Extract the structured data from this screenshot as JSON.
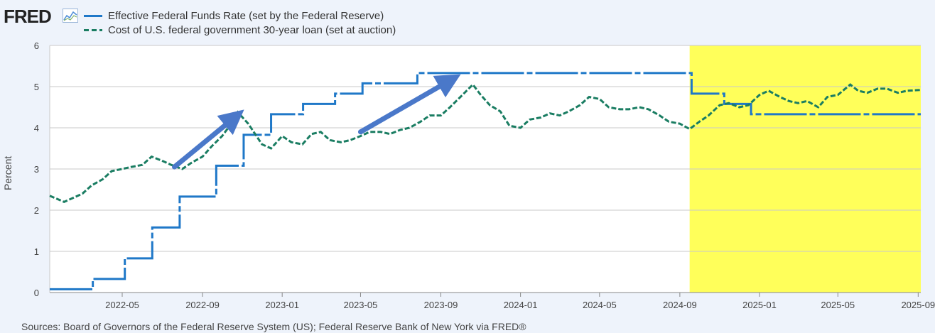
{
  "header": {
    "logo_text": "FRED",
    "logo_icon": "line-chart-icon"
  },
  "footer": {
    "sources": "Sources: Board of Governors of the Federal Reserve System (US); Federal Reserve Bank of New York via FRED®"
  },
  "chart_data": {
    "type": "line",
    "title": "",
    "xlabel": "",
    "ylabel": "Percent",
    "ylim": [
      0,
      6
    ],
    "yticks": [
      0,
      1,
      2,
      3,
      4,
      5,
      6
    ],
    "xlim": [
      "2022-01-10",
      "2025-09-05"
    ],
    "xticks": [
      "2022-05",
      "2022-09",
      "2023-01",
      "2023-05",
      "2023-09",
      "2024-01",
      "2024-05",
      "2024-09",
      "2025-01",
      "2025-05",
      "2025-09"
    ],
    "grid": "horizontal",
    "legend_position": "top-left",
    "series": [
      {
        "name": "Effective Federal Funds Rate (set by the Federal Reserve)",
        "color": "#1f78c8",
        "style": "solid-step",
        "x": [
          "2022-01-10",
          "2022-03-17",
          "2022-05-05",
          "2022-06-16",
          "2022-07-28",
          "2022-09-22",
          "2022-11-03",
          "2022-12-15",
          "2023-02-02",
          "2023-03-23",
          "2023-05-04",
          "2023-07-27",
          "2024-09-19",
          "2024-11-08",
          "2024-12-19",
          "2025-09-05"
        ],
        "y": [
          0.08,
          0.33,
          0.83,
          1.58,
          2.33,
          3.08,
          3.83,
          4.33,
          4.58,
          4.83,
          5.08,
          5.33,
          4.83,
          4.58,
          4.33,
          4.33
        ]
      },
      {
        "name": "Cost of U.S. federal government 30-year loan (set at auction)",
        "color": "#1a7d62",
        "style": "dashed",
        "x": [
          "2022-01-10",
          "2022-02-01",
          "2022-02-15",
          "2022-03-01",
          "2022-03-15",
          "2022-04-01",
          "2022-04-15",
          "2022-05-01",
          "2022-05-15",
          "2022-06-01",
          "2022-06-15",
          "2022-07-01",
          "2022-07-15",
          "2022-08-01",
          "2022-08-15",
          "2022-09-01",
          "2022-09-15",
          "2022-10-01",
          "2022-10-15",
          "2022-10-25",
          "2022-11-10",
          "2022-12-01",
          "2022-12-15",
          "2023-01-01",
          "2023-01-15",
          "2023-02-01",
          "2023-02-15",
          "2023-03-01",
          "2023-03-15",
          "2023-04-01",
          "2023-04-15",
          "2023-05-01",
          "2023-05-15",
          "2023-06-01",
          "2023-06-15",
          "2023-07-01",
          "2023-07-15",
          "2023-08-01",
          "2023-08-15",
          "2023-09-01",
          "2023-09-15",
          "2023-10-01",
          "2023-10-20",
          "2023-11-01",
          "2023-11-15",
          "2023-12-01",
          "2023-12-15",
          "2024-01-01",
          "2024-01-15",
          "2024-02-01",
          "2024-02-15",
          "2024-03-01",
          "2024-03-15",
          "2024-04-01",
          "2024-04-15",
          "2024-05-01",
          "2024-05-15",
          "2024-06-01",
          "2024-06-15",
          "2024-07-01",
          "2024-07-15",
          "2024-08-01",
          "2024-08-15",
          "2024-09-01",
          "2024-09-16",
          "2024-10-01",
          "2024-10-15",
          "2024-11-01",
          "2024-11-15",
          "2024-12-01",
          "2024-12-15",
          "2025-01-01",
          "2025-01-15",
          "2025-02-01",
          "2025-02-15",
          "2025-03-01",
          "2025-03-15",
          "2025-04-01",
          "2025-04-15",
          "2025-05-01",
          "2025-05-20",
          "2025-06-01",
          "2025-06-15",
          "2025-07-01",
          "2025-07-15",
          "2025-08-01",
          "2025-08-15",
          "2025-09-05"
        ],
        "y": [
          2.35,
          2.2,
          2.3,
          2.4,
          2.6,
          2.75,
          2.95,
          3.0,
          3.05,
          3.1,
          3.3,
          3.2,
          3.1,
          3.0,
          3.15,
          3.3,
          3.55,
          3.8,
          4.1,
          4.38,
          4.1,
          3.6,
          3.5,
          3.8,
          3.65,
          3.6,
          3.85,
          3.9,
          3.7,
          3.65,
          3.7,
          3.8,
          3.9,
          3.9,
          3.85,
          3.95,
          4.0,
          4.15,
          4.3,
          4.3,
          4.5,
          4.75,
          5.05,
          4.8,
          4.55,
          4.4,
          4.05,
          4.0,
          4.2,
          4.25,
          4.35,
          4.3,
          4.4,
          4.55,
          4.75,
          4.7,
          4.5,
          4.45,
          4.45,
          4.5,
          4.45,
          4.3,
          4.15,
          4.1,
          3.97,
          4.15,
          4.3,
          4.55,
          4.6,
          4.5,
          4.55,
          4.8,
          4.9,
          4.75,
          4.65,
          4.6,
          4.65,
          4.5,
          4.75,
          4.8,
          5.05,
          4.9,
          4.85,
          4.95,
          4.95,
          4.85,
          4.9,
          4.92
        ]
      }
    ],
    "annotations": [
      {
        "type": "arrow",
        "from": [
          "2022-07-20",
          3.05
        ],
        "to": [
          "2022-10-20",
          4.25
        ],
        "color": "#4a78c9"
      },
      {
        "type": "arrow",
        "from": [
          "2023-05-01",
          3.9
        ],
        "to": [
          "2023-09-15",
          5.15
        ],
        "color": "#4a78c9"
      },
      {
        "type": "highlight",
        "x_start": "2024-09-16",
        "x_end": "2025-09-05",
        "color": "#ffff5a"
      }
    ]
  }
}
